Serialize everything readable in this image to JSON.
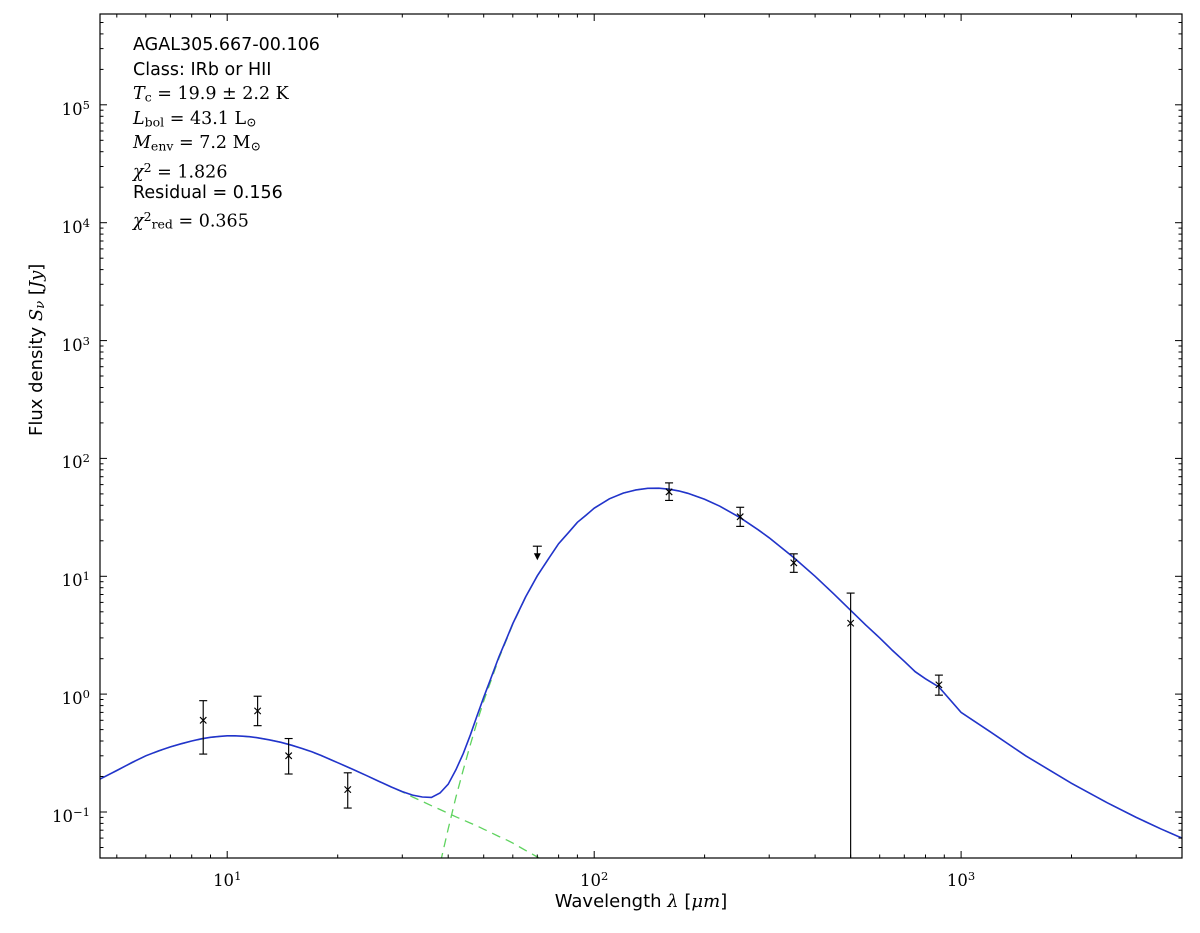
{
  "chart_data": {
    "type": "line",
    "title": "",
    "xlabel": "Wavelength λ [μm]",
    "ylabel": "Flux density S_ν [Jy]",
    "xscale": "log",
    "yscale": "log",
    "xlim": [
      4.5,
      4000
    ],
    "ylim": [
      0.0407,
      590000
    ],
    "grid": false,
    "legend": "none",
    "x_tick_exponents": [
      1,
      2,
      3
    ],
    "y_tick_exponents": [
      -1,
      0,
      1,
      2,
      3,
      4,
      5
    ],
    "xlabel_segments": [
      {
        "t": "Wavelength ",
        "k": "sans"
      },
      {
        "t": "λ",
        "k": "it"
      },
      {
        "t": " [",
        "k": "sans"
      },
      {
        "t": "μm",
        "k": "it"
      },
      {
        "t": "]",
        "k": "sans"
      }
    ],
    "ylabel_segments": [
      {
        "t": "Flux density ",
        "k": "sans"
      },
      {
        "t": "S",
        "k": "it"
      },
      {
        "t": "ν",
        "k": "subit"
      },
      {
        "t": " [",
        "k": "sans"
      },
      {
        "t": "Jy",
        "k": "it"
      },
      {
        "t": "]",
        "k": "sans"
      }
    ],
    "annotation": {
      "lines": [
        {
          "segments": [
            {
              "t": "AGAL305.667-00.106",
              "k": "sans"
            }
          ]
        },
        {
          "segments": [
            {
              "t": "Class: IRb or HII",
              "k": "sans"
            }
          ]
        },
        {
          "segments": [
            {
              "t": "T",
              "k": "it"
            },
            {
              "t": "c",
              "k": "sub"
            },
            {
              "t": " = 19.9 ± 2.2 K",
              "k": "rm"
            }
          ]
        },
        {
          "segments": [
            {
              "t": "L",
              "k": "it"
            },
            {
              "t": "bol",
              "k": "sub"
            },
            {
              "t": " = 43.1 L",
              "k": "rm"
            },
            {
              "t": "⊙",
              "k": "sub"
            }
          ]
        },
        {
          "segments": [
            {
              "t": "M",
              "k": "it"
            },
            {
              "t": "env",
              "k": "sub"
            },
            {
              "t": " = 7.2 M",
              "k": "rm"
            },
            {
              "t": "⊙",
              "k": "sub"
            }
          ]
        },
        {
          "segments": [
            {
              "t": "χ",
              "k": "it"
            },
            {
              "t": "2",
              "k": "sup"
            },
            {
              "t": " = 1.826",
              "k": "rm"
            }
          ]
        },
        {
          "segments": [
            {
              "t": "Residual = 0.156",
              "k": "sans"
            }
          ]
        },
        {
          "segments": [
            {
              "t": "χ",
              "k": "it"
            },
            {
              "t": "2",
              "k": "sup"
            },
            {
              "t": "red",
              "k": "sub"
            },
            {
              "t": " = 0.365",
              "k": "rm"
            }
          ]
        }
      ]
    },
    "series": [
      {
        "name": "cold-component-model",
        "color": "#5fd35f",
        "dash": "9 6",
        "width": 1.3,
        "x": [
          36,
          38,
          40,
          42,
          44,
          46,
          48,
          50,
          52,
          55,
          58,
          60,
          65,
          70,
          80,
          90,
          100,
          110,
          120,
          130,
          140,
          150,
          160,
          170,
          180,
          200,
          220,
          250,
          280,
          300,
          350,
          400,
          450,
          500,
          550,
          600,
          650,
          700,
          750,
          800,
          870,
          1000,
          1200,
          1500,
          2000,
          2500,
          3000,
          3500,
          4000
        ],
        "y": [
          0.016,
          0.036,
          0.0718,
          0.1335,
          0.2285,
          0.3736,
          0.586,
          0.874,
          1.231,
          2.01,
          3.02,
          3.92,
          6.62,
          10.1,
          18.9,
          28.7,
          37.8,
          45.4,
          50.8,
          54.1,
          55.8,
          55.9,
          54.8,
          53.0,
          50.6,
          45.0,
          39.3,
          31.4,
          24.8,
          21.2,
          14.4,
          10.0,
          7.09,
          5.14,
          3.85,
          3.0,
          2.35,
          1.9,
          1.55,
          1.35,
          1.15,
          0.7,
          0.48,
          0.3,
          0.175,
          0.12,
          0.09,
          0.072,
          0.06
        ]
      },
      {
        "name": "hot-component-model",
        "color": "#5fd35f",
        "dash": "9 6",
        "width": 1.3,
        "x": [
          4.5,
          5,
          6,
          7,
          8,
          9,
          10,
          11,
          12,
          13,
          14,
          15,
          16,
          18,
          20,
          22,
          24,
          26,
          28,
          30,
          32,
          34,
          36,
          38,
          40,
          42,
          44,
          46,
          48,
          50,
          52,
          55,
          58,
          60,
          63,
          66,
          70,
          74
        ],
        "y": [
          0.19,
          0.225,
          0.3,
          0.357,
          0.4,
          0.43,
          0.443,
          0.44,
          0.428,
          0.41,
          0.39,
          0.368,
          0.346,
          0.302,
          0.262,
          0.23,
          0.203,
          0.181,
          0.163,
          0.148,
          0.134,
          0.123,
          0.113,
          0.105,
          0.0975,
          0.091,
          0.0855,
          0.0805,
          0.076,
          0.0715,
          0.0675,
          0.062,
          0.0575,
          0.0545,
          0.05,
          0.046,
          0.0415,
          0.038
        ]
      },
      {
        "name": "total-model",
        "color": "#2233cc",
        "dash": "",
        "width": 1.6,
        "x": [
          4.5,
          5,
          5.5,
          6,
          6.5,
          7,
          7.5,
          8,
          8.5,
          9,
          9.5,
          10,
          10.5,
          11,
          11.5,
          12,
          13,
          14,
          15,
          16,
          17,
          18,
          19,
          20,
          22,
          24,
          26,
          28,
          30,
          32,
          34,
          36,
          38,
          40,
          42,
          44,
          46,
          48,
          50,
          52,
          55,
          58,
          60,
          65,
          70,
          75,
          80,
          85,
          90,
          95,
          100,
          110,
          120,
          130,
          140,
          150,
          160,
          170,
          180,
          200,
          220,
          250,
          280,
          300,
          350,
          400,
          450,
          500,
          550,
          600,
          650,
          700,
          750,
          800,
          870,
          1000,
          1200,
          1500,
          2000,
          2500,
          3000,
          3500,
          4000
        ],
        "y": [
          0.19,
          0.225,
          0.263,
          0.3,
          0.33,
          0.357,
          0.38,
          0.4,
          0.418,
          0.43,
          0.438,
          0.443,
          0.443,
          0.44,
          0.435,
          0.428,
          0.41,
          0.39,
          0.368,
          0.346,
          0.324,
          0.302,
          0.281,
          0.262,
          0.23,
          0.203,
          0.181,
          0.163,
          0.149,
          0.139,
          0.134,
          0.133,
          0.145,
          0.172,
          0.228,
          0.314,
          0.452,
          0.66,
          0.94,
          1.3,
          2.07,
          3.07,
          3.97,
          6.66,
          10.1,
          14.0,
          18.9,
          23.4,
          28.7,
          33.0,
          37.8,
          45.4,
          50.8,
          54.1,
          55.8,
          55.9,
          54.8,
          53.0,
          50.6,
          45.0,
          39.3,
          31.4,
          24.8,
          21.2,
          14.4,
          10.0,
          7.09,
          5.14,
          3.85,
          3.0,
          2.35,
          1.9,
          1.55,
          1.35,
          1.15,
          0.7,
          0.48,
          0.3,
          0.175,
          0.12,
          0.09,
          0.072,
          0.06
        ]
      }
    ],
    "points": {
      "name": "photometry",
      "color": "#000000",
      "marker": "x",
      "data": [
        {
          "x": 8.6,
          "y": 0.6,
          "ylo": 0.31,
          "yhi": 0.88
        },
        {
          "x": 12.1,
          "y": 0.72,
          "ylo": 0.54,
          "yhi": 0.96
        },
        {
          "x": 14.7,
          "y": 0.3,
          "ylo": 0.21,
          "yhi": 0.42
        },
        {
          "x": 21.3,
          "y": 0.155,
          "ylo": 0.108,
          "yhi": 0.215
        },
        {
          "x": 70,
          "y": 18,
          "upper_limit": true
        },
        {
          "x": 160,
          "y": 52,
          "ylo": 44,
          "yhi": 62
        },
        {
          "x": 250,
          "y": 32,
          "ylo": 26.5,
          "yhi": 38.5
        },
        {
          "x": 350,
          "y": 13,
          "ylo": 10.8,
          "yhi": 15.5
        },
        {
          "x": 500,
          "y": 4.0,
          "ylo": null,
          "yhi": 7.2
        },
        {
          "x": 870,
          "y": 1.2,
          "ylo": 0.98,
          "yhi": 1.45
        }
      ]
    }
  }
}
